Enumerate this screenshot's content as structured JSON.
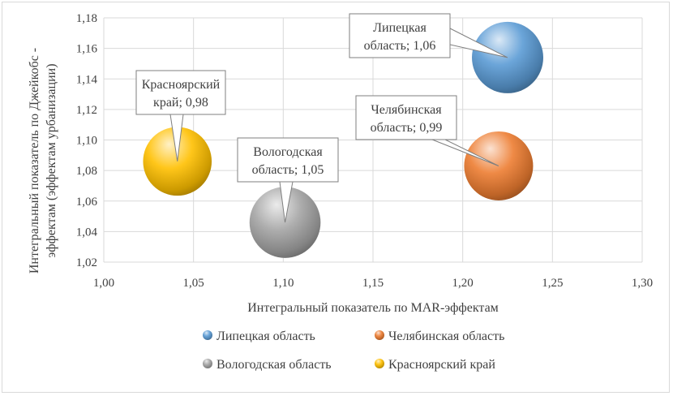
{
  "chart_data": {
    "type": "bubble",
    "xlabel": "Интегральный показатель по MAR-эффектам",
    "ylabel_line1": "Интегральный показатель по Джейкобс -",
    "ylabel_line2": "эффектам (эффектам урбанизации)",
    "xlim": [
      1.0,
      1.3
    ],
    "ylim": [
      1.02,
      1.18
    ],
    "x_ticks": [
      "1,00",
      "1,05",
      "1,10",
      "1,15",
      "1,20",
      "1,25",
      "1,30"
    ],
    "y_ticks": [
      "1,02",
      "1,04",
      "1,06",
      "1,08",
      "1,10",
      "1,12",
      "1,14",
      "1,16",
      "1,18"
    ],
    "grid": true,
    "legend_position": "bottom",
    "series": [
      {
        "name": "Липецкая область",
        "x": 1.225,
        "y": 1.154,
        "size": 1.06,
        "color": "#5b9bd5",
        "label_line1": "Липецкая",
        "label_line2": "область; 1,06"
      },
      {
        "name": "Челябинская область",
        "x": 1.22,
        "y": 1.083,
        "size": 0.99,
        "color": "#ed7d31",
        "label_line1": "Челябинская",
        "label_line2": "область; 0,99"
      },
      {
        "name": "Вологодская область",
        "x": 1.101,
        "y": 1.046,
        "size": 1.05,
        "color": "#a5a5a5",
        "label_line1": "Вологодская",
        "label_line2": "область; 1,05"
      },
      {
        "name": "Красноярский край",
        "x": 1.041,
        "y": 1.086,
        "size": 0.98,
        "color": "#ffc000",
        "label_line1": "Красноярский",
        "label_line2": "край; 0,98"
      }
    ]
  }
}
